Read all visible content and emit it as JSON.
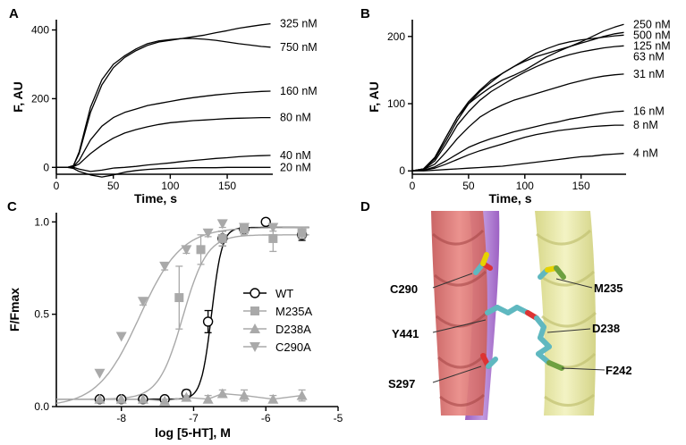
{
  "chart_data": [
    {
      "panel": "A",
      "type": "line",
      "xlabel": "Time, s",
      "ylabel": "F, AU",
      "xlim": [
        0,
        190
      ],
      "ylim": [
        -20,
        430
      ],
      "xticks": [
        0,
        50,
        100,
        150
      ],
      "yticks": [
        0,
        200,
        400
      ],
      "series": [
        {
          "name": "325 nM",
          "x": [
            0,
            10,
            15,
            20,
            25,
            30,
            40,
            50,
            60,
            70,
            80,
            90,
            100,
            110,
            120,
            130,
            140,
            150,
            160,
            170,
            180,
            188
          ],
          "y": [
            0,
            0,
            5,
            40,
            100,
            160,
            240,
            290,
            320,
            340,
            355,
            365,
            370,
            375,
            380,
            385,
            392,
            398,
            405,
            410,
            415,
            418
          ]
        },
        {
          "name": "750 nM",
          "x": [
            0,
            10,
            15,
            20,
            25,
            30,
            40,
            50,
            60,
            70,
            80,
            90,
            100,
            110,
            120,
            130,
            140,
            150,
            160,
            170,
            180,
            188
          ],
          "y": [
            0,
            0,
            5,
            45,
            110,
            175,
            255,
            300,
            325,
            345,
            360,
            368,
            372,
            375,
            375,
            373,
            370,
            365,
            360,
            356,
            352,
            350
          ]
        },
        {
          "name": "160 nM",
          "x": [
            0,
            10,
            15,
            20,
            25,
            30,
            40,
            50,
            60,
            70,
            80,
            90,
            100,
            110,
            120,
            130,
            140,
            150,
            160,
            170,
            180,
            188
          ],
          "y": [
            0,
            0,
            3,
            20,
            50,
            80,
            120,
            145,
            160,
            170,
            180,
            186,
            192,
            198,
            203,
            207,
            211,
            214,
            217,
            219,
            221,
            222
          ]
        },
        {
          "name": "80 nM",
          "x": [
            0,
            10,
            15,
            20,
            25,
            30,
            40,
            50,
            60,
            70,
            80,
            90,
            100,
            110,
            120,
            130,
            140,
            150,
            160,
            170,
            180,
            188
          ],
          "y": [
            0,
            0,
            2,
            10,
            25,
            40,
            65,
            85,
            100,
            110,
            118,
            125,
            130,
            133,
            136,
            138,
            140,
            142,
            143,
            144,
            145,
            145
          ]
        },
        {
          "name": "40 nM",
          "x": [
            0,
            10,
            15,
            20,
            30,
            40,
            50,
            60,
            70,
            80,
            90,
            100,
            110,
            120,
            130,
            140,
            150,
            160,
            170,
            180,
            188
          ],
          "y": [
            0,
            0,
            0,
            -5,
            -12,
            -8,
            -2,
            0,
            3,
            7,
            10,
            13,
            17,
            20,
            23,
            26,
            28,
            31,
            33,
            34,
            35
          ]
        },
        {
          "name": "20 nM",
          "x": [
            0,
            10,
            15,
            20,
            30,
            40,
            50,
            60,
            70,
            80,
            90,
            100,
            110,
            120,
            130,
            140,
            150,
            160,
            170,
            180,
            188
          ],
          "y": [
            0,
            0,
            -3,
            -12,
            -22,
            -28,
            -22,
            -14,
            -9,
            -6,
            -4,
            -3,
            -2,
            -1,
            -1,
            -1,
            0,
            0,
            0,
            0,
            0
          ]
        }
      ]
    },
    {
      "panel": "B",
      "type": "line",
      "xlabel": "Time, s",
      "ylabel": "F, AU",
      "xlim": [
        0,
        190
      ],
      "ylim": [
        -5,
        225
      ],
      "xticks": [
        0,
        50,
        100,
        150
      ],
      "yticks": [
        0,
        100,
        200
      ],
      "series": [
        {
          "name": "250 nM",
          "x": [
            0,
            10,
            20,
            30,
            40,
            50,
            60,
            70,
            80,
            90,
            100,
            110,
            120,
            130,
            140,
            150,
            160,
            170,
            180,
            188
          ],
          "y": [
            0,
            3,
            20,
            50,
            80,
            100,
            113,
            125,
            135,
            142,
            150,
            160,
            170,
            178,
            185,
            192,
            200,
            208,
            214,
            218
          ]
        },
        {
          "name": "500 nM",
          "x": [
            0,
            10,
            20,
            30,
            40,
            50,
            60,
            70,
            80,
            90,
            100,
            110,
            120,
            130,
            140,
            150,
            160,
            170,
            180,
            188
          ],
          "y": [
            0,
            3,
            20,
            50,
            80,
            103,
            120,
            135,
            145,
            155,
            163,
            170,
            175,
            180,
            185,
            190,
            195,
            200,
            204,
            206
          ]
        },
        {
          "name": "125 nM",
          "x": [
            0,
            10,
            20,
            30,
            40,
            50,
            60,
            70,
            80,
            90,
            100,
            110,
            120,
            130,
            140,
            150,
            160,
            170,
            180,
            188
          ],
          "y": [
            0,
            3,
            18,
            45,
            75,
            100,
            118,
            132,
            145,
            155,
            165,
            175,
            182,
            188,
            192,
            195,
            197,
            199,
            201,
            202
          ]
        },
        {
          "name": "63 nM",
          "x": [
            0,
            10,
            20,
            30,
            40,
            50,
            60,
            70,
            80,
            90,
            100,
            110,
            120,
            130,
            140,
            150,
            160,
            170,
            180,
            188
          ],
          "y": [
            0,
            2,
            15,
            40,
            68,
            88,
            105,
            118,
            128,
            138,
            147,
            155,
            162,
            168,
            173,
            177,
            180,
            183,
            185,
            186
          ]
        },
        {
          "name": "31 nM",
          "x": [
            0,
            10,
            20,
            30,
            40,
            50,
            60,
            70,
            80,
            90,
            100,
            110,
            120,
            130,
            140,
            150,
            160,
            170,
            180,
            188
          ],
          "y": [
            0,
            2,
            10,
            28,
            48,
            65,
            80,
            90,
            98,
            105,
            110,
            115,
            120,
            125,
            130,
            134,
            138,
            141,
            143,
            144
          ]
        },
        {
          "name": "16 nM",
          "x": [
            0,
            10,
            20,
            30,
            40,
            50,
            60,
            70,
            80,
            90,
            100,
            110,
            120,
            130,
            140,
            150,
            160,
            170,
            180,
            188
          ],
          "y": [
            0,
            1,
            6,
            15,
            25,
            35,
            42,
            48,
            53,
            58,
            62,
            66,
            70,
            73,
            77,
            80,
            83,
            86,
            88,
            89
          ]
        },
        {
          "name": "8 nM",
          "x": [
            0,
            10,
            20,
            30,
            40,
            50,
            60,
            70,
            80,
            90,
            100,
            110,
            120,
            130,
            140,
            150,
            160,
            170,
            180,
            188
          ],
          "y": [
            0,
            1,
            4,
            10,
            17,
            24,
            30,
            35,
            40,
            45,
            50,
            54,
            57,
            60,
            62,
            64,
            66,
            67,
            68,
            68
          ]
        },
        {
          "name": "4 nM",
          "x": [
            0,
            10,
            20,
            30,
            40,
            50,
            60,
            70,
            80,
            90,
            100,
            110,
            120,
            130,
            140,
            150,
            160,
            170,
            180,
            188
          ],
          "y": [
            0,
            0,
            1,
            2,
            3,
            4,
            5,
            6,
            7,
            9,
            11,
            13,
            15,
            17,
            19,
            21,
            22,
            24,
            25,
            26
          ]
        }
      ]
    },
    {
      "panel": "C",
      "type": "scatter",
      "xlabel": "log [5-HT], M",
      "ylabel": "F/Fmax",
      "xlim": [
        -8.9,
        -5
      ],
      "ylim": [
        0,
        1.05
      ],
      "xticks": [
        -8,
        -7,
        -6,
        -5
      ],
      "yticks": [
        0.0,
        0.5,
        1.0
      ],
      "series": [
        {
          "name": "WT",
          "marker": "circle",
          "color": "#000000",
          "x": [
            -8.3,
            -8.0,
            -7.7,
            -7.4,
            -7.1,
            -6.8,
            -6.6,
            -6.3,
            -6.0,
            -5.5
          ],
          "y": [
            0.04,
            0.04,
            0.04,
            0.04,
            0.07,
            0.46,
            0.91,
            0.96,
            1.0,
            0.93
          ],
          "err": [
            0,
            0,
            0.01,
            0.01,
            0.02,
            0.06,
            0.04,
            0.02,
            0,
            0.03
          ],
          "fit": {
            "bottom": 0.04,
            "top": 0.97,
            "logEC50": -6.75,
            "hill": 6
          }
        },
        {
          "name": "M235A",
          "marker": "square",
          "color": "#a9a9a9",
          "x": [
            -7.2,
            -6.9,
            -6.6,
            -6.3,
            -5.9,
            -5.5
          ],
          "y": [
            0.59,
            0.85,
            0.91,
            0.96,
            0.91,
            0.94
          ],
          "err": [
            0.17,
            0.08,
            0.04,
            0.03,
            0.07,
            0.03
          ],
          "fit": {
            "bottom": 0.04,
            "top": 0.93,
            "logEC50": -7.15,
            "hill": 2.6
          }
        },
        {
          "name": "D238A",
          "marker": "triangle",
          "color": "#a9a9a9",
          "x": [
            -8.3,
            -8.0,
            -7.7,
            -7.4,
            -7.1,
            -6.8,
            -6.6,
            -6.3,
            -5.9,
            -5.5
          ],
          "y": [
            0.04,
            0.04,
            0.04,
            0.03,
            0.05,
            0.04,
            0.07,
            0.06,
            0.04,
            0.06
          ],
          "err": [
            0,
            0,
            0,
            0.01,
            0.01,
            0.02,
            0.02,
            0.03,
            0.02,
            0.03
          ]
        },
        {
          "name": "C290A",
          "marker": "triangle-down",
          "color": "#a9a9a9",
          "x": [
            -8.3,
            -8.0,
            -7.7,
            -7.4,
            -7.1,
            -6.8,
            -6.6,
            -6.3,
            -5.9
          ],
          "y": [
            0.18,
            0.38,
            0.57,
            0.76,
            0.85,
            0.94,
            0.99,
            0.97,
            0.97
          ],
          "err": [
            0,
            0,
            0.02,
            0.02,
            0.02,
            0.02,
            0.02,
            0.02,
            0.02
          ],
          "fit": {
            "bottom": 0.0,
            "top": 0.97,
            "logEC50": -7.75,
            "hill": 1.5
          }
        }
      ]
    }
  ],
  "figures": {
    "panel_labels": [
      "A",
      "B",
      "C",
      "D"
    ],
    "molecular": {
      "residues": [
        "C290",
        "M235",
        "Y441",
        "D238",
        "S297",
        "F242"
      ]
    }
  }
}
